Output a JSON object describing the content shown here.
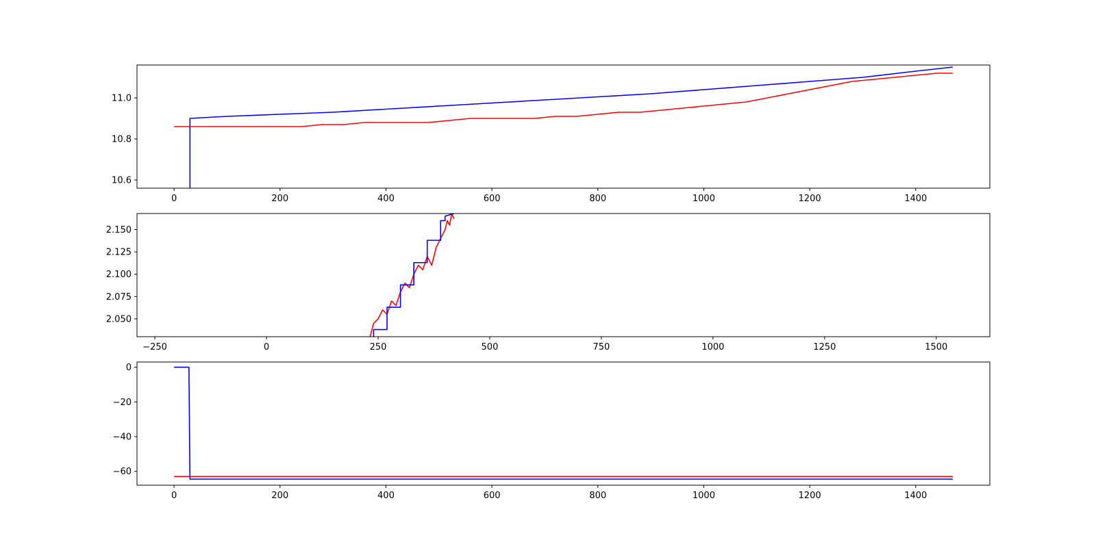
{
  "chart_data": [
    {
      "type": "line",
      "title": "",
      "xlabel": "",
      "ylabel": "",
      "xlim": [
        -70,
        1540
      ],
      "ylim": [
        10.56,
        11.16
      ],
      "xticks": [
        0,
        200,
        400,
        600,
        800,
        1000,
        1200,
        1400
      ],
      "yticks": [
        10.6,
        10.8,
        11.0
      ],
      "grid": false,
      "series": [
        {
          "color": "#ff0000",
          "x": [
            0,
            40,
            80,
            120,
            160,
            200,
            240,
            280,
            320,
            360,
            400,
            440,
            480,
            520,
            560,
            600,
            640,
            680,
            720,
            760,
            800,
            840,
            880,
            920,
            960,
            1000,
            1040,
            1080,
            1120,
            1160,
            1200,
            1240,
            1280,
            1320,
            1360,
            1400,
            1440,
            1470
          ],
          "y": [
            10.86,
            10.86,
            10.86,
            10.86,
            10.86,
            10.86,
            10.86,
            10.87,
            10.87,
            10.88,
            10.88,
            10.88,
            10.88,
            10.89,
            10.9,
            10.9,
            10.9,
            10.9,
            10.91,
            10.91,
            10.92,
            10.93,
            10.93,
            10.94,
            10.95,
            10.96,
            10.97,
            10.98,
            11.0,
            11.02,
            11.04,
            11.06,
            11.08,
            11.09,
            11.1,
            11.11,
            11.12,
            11.12
          ]
        },
        {
          "color": "#0000ff",
          "x": [
            30,
            30,
            100,
            200,
            300,
            400,
            500,
            600,
            700,
            800,
            900,
            1000,
            1100,
            1200,
            1300,
            1400,
            1470
          ],
          "y": [
            10.56,
            10.9,
            10.91,
            10.92,
            10.93,
            10.945,
            10.96,
            10.975,
            10.99,
            11.005,
            11.02,
            11.04,
            11.06,
            11.08,
            11.1,
            11.13,
            11.15
          ]
        }
      ]
    },
    {
      "type": "line",
      "title": "",
      "xlabel": "",
      "ylabel": "",
      "xlim": [
        -290,
        1620
      ],
      "ylim": [
        2.03,
        2.168
      ],
      "xticks": [
        -250,
        0,
        250,
        500,
        750,
        1000,
        1250,
        1500
      ],
      "yticks": [
        2.05,
        2.075,
        2.1,
        2.125,
        2.15
      ],
      "grid": false,
      "series": [
        {
          "color": "#ff0000",
          "x": [
            232,
            240,
            250,
            260,
            270,
            280,
            290,
            300,
            310,
            320,
            330,
            340,
            350,
            360,
            370,
            380,
            390,
            400,
            405,
            410,
            415,
            420
          ],
          "y": [
            2.03,
            2.045,
            2.05,
            2.06,
            2.055,
            2.07,
            2.065,
            2.08,
            2.09,
            2.085,
            2.1,
            2.11,
            2.105,
            2.12,
            2.11,
            2.13,
            2.14,
            2.15,
            2.16,
            2.155,
            2.168,
            2.162
          ]
        },
        {
          "color": "#0000ff",
          "x": [
            240,
            240,
            270,
            270,
            300,
            300,
            330,
            330,
            360,
            360,
            390,
            390,
            400,
            400,
            420
          ],
          "y": [
            2.03,
            2.038,
            2.038,
            2.063,
            2.063,
            2.088,
            2.088,
            2.113,
            2.113,
            2.138,
            2.138,
            2.16,
            2.16,
            2.165,
            2.168
          ]
        }
      ]
    },
    {
      "type": "line",
      "title": "",
      "xlabel": "",
      "ylabel": "",
      "xlim": [
        -70,
        1540
      ],
      "ylim": [
        -68,
        3
      ],
      "xticks": [
        0,
        200,
        400,
        600,
        800,
        1000,
        1200,
        1400
      ],
      "yticks": [
        0,
        -20,
        -40,
        -60
      ],
      "grid": false,
      "series": [
        {
          "color": "#ff0000",
          "x": [
            0,
            1470
          ],
          "y": [
            -63,
            -63
          ]
        },
        {
          "color": "#0000ff",
          "x": [
            0,
            28,
            30,
            1470
          ],
          "y": [
            0,
            0,
            -64.5,
            -64.5
          ]
        }
      ]
    }
  ]
}
